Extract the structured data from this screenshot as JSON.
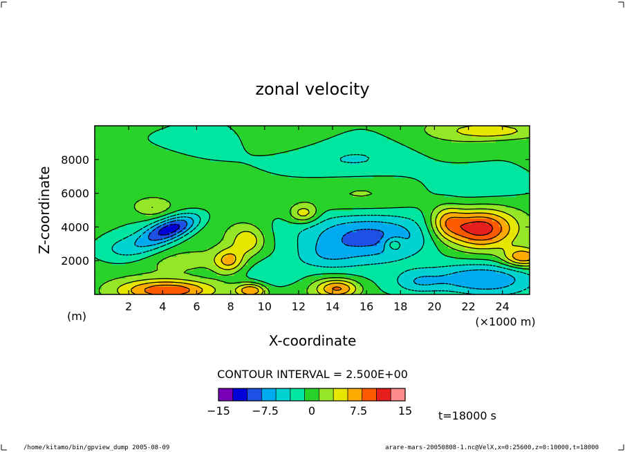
{
  "chart_data": {
    "type": "heatmap",
    "title": "zonal velocity",
    "xlabel": "X-coordinate",
    "ylabel": "Z-coordinate",
    "x_unit": "(×1000 m)",
    "y_unit": "(m)",
    "xlim": [
      0,
      25.6
    ],
    "ylim": [
      0,
      10000
    ],
    "x_ticks": [
      2,
      4,
      6,
      8,
      10,
      12,
      14,
      16,
      18,
      20,
      22,
      24
    ],
    "y_ticks": [
      2000,
      4000,
      6000,
      8000
    ],
    "contour_interval_text": "CONTOUR INTERVAL = 2.500E+00",
    "colorbar": {
      "boundaries": [
        -15,
        -12.5,
        -10,
        -7.5,
        -5,
        -2.5,
        0,
        2.5,
        5,
        7.5,
        10,
        12.5,
        15
      ],
      "tick_labels": [
        "−15",
        "−7.5",
        "0",
        "7.5",
        "15"
      ],
      "colors": [
        "#7a00b8",
        "#0000d8",
        "#1e50e6",
        "#00aaf0",
        "#00d2d2",
        "#00e6a0",
        "#28d228",
        "#96e628",
        "#e6e600",
        "#ffaa00",
        "#ff5a00",
        "#e61e1e",
        "#ff8c8c"
      ]
    },
    "time_label": "t=18000 s",
    "features": [
      {
        "name": "negative band left",
        "x": 4.5,
        "z": 3800,
        "value": -12.5
      },
      {
        "name": "negative band centre",
        "x": 16,
        "z": 3500,
        "value": -10
      },
      {
        "name": "negative core lower right",
        "x": 22.5,
        "z": 900,
        "value": -7.5
      },
      {
        "name": "positive near-surface left",
        "x": 4.5,
        "z": 300,
        "value": 10
      },
      {
        "name": "positive near-surface centre",
        "x": 14.3,
        "z": 400,
        "value": 10
      },
      {
        "name": "positive core right",
        "x": 22.5,
        "z": 3900,
        "value": 12.5
      },
      {
        "name": "positive patch right edge",
        "x": 25.2,
        "z": 2200,
        "value": 10
      }
    ]
  },
  "footer": {
    "left": "/home/kitamo/bin/gpview_dump  2005-08-09",
    "right": "arare-mars-20050808-1.nc@VelX,x=0:25600,z=0:10000,t=18000"
  }
}
